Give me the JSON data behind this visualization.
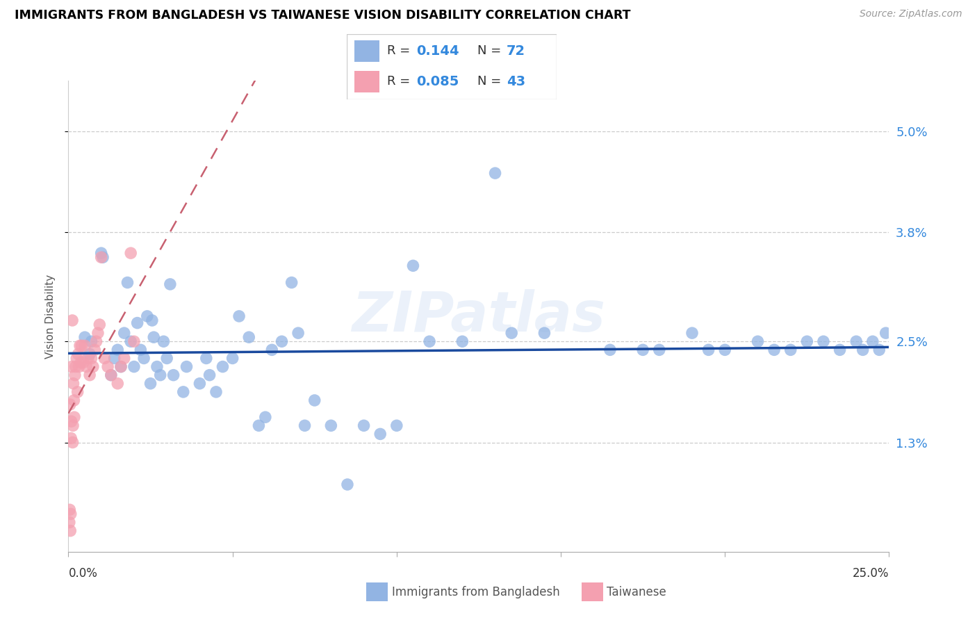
{
  "title": "IMMIGRANTS FROM BANGLADESH VS TAIWANESE VISION DISABILITY CORRELATION CHART",
  "source": "Source: ZipAtlas.com",
  "ylabel": "Vision Disability",
  "xlim": [
    0,
    25
  ],
  "ylim": [
    0,
    5.6
  ],
  "ytick_vals": [
    1.3,
    2.5,
    3.8,
    5.0
  ],
  "ytick_labels": [
    "1.3%",
    "2.5%",
    "3.8%",
    "5.0%"
  ],
  "blue_color": "#92b4e3",
  "pink_color": "#f4a0b0",
  "blue_line_color": "#1a4a9e",
  "pink_line_color": "#c86070",
  "watermark": "ZIPatlas",
  "blue_r": 0.144,
  "blue_n": 72,
  "pink_r": 0.085,
  "pink_n": 43,
  "blue_points_x": [
    0.5,
    0.65,
    0.7,
    1.0,
    1.05,
    1.3,
    1.4,
    1.5,
    1.6,
    1.7,
    1.8,
    1.9,
    2.0,
    2.1,
    2.2,
    2.3,
    2.4,
    2.5,
    2.55,
    2.6,
    2.7,
    2.8,
    2.9,
    3.0,
    3.1,
    3.2,
    3.5,
    3.6,
    4.0,
    4.2,
    4.3,
    4.5,
    4.7,
    5.0,
    5.2,
    5.5,
    5.8,
    6.0,
    6.2,
    6.5,
    6.8,
    7.0,
    7.2,
    7.5,
    8.0,
    8.5,
    9.0,
    9.5,
    10.0,
    10.5,
    11.0,
    12.0,
    13.0,
    13.5,
    14.5,
    16.5,
    17.5,
    18.0,
    19.0,
    19.5,
    20.0,
    21.0,
    21.5,
    22.0,
    22.5,
    23.0,
    23.5,
    24.0,
    24.2,
    24.5,
    24.7,
    24.9
  ],
  "blue_points_y": [
    2.55,
    2.35,
    2.5,
    3.55,
    3.5,
    2.1,
    2.3,
    2.4,
    2.2,
    2.6,
    3.2,
    2.5,
    2.2,
    2.72,
    2.4,
    2.3,
    2.8,
    2.0,
    2.75,
    2.55,
    2.2,
    2.1,
    2.5,
    2.3,
    3.18,
    2.1,
    1.9,
    2.2,
    2.0,
    2.3,
    2.1,
    1.9,
    2.2,
    2.3,
    2.8,
    2.55,
    1.5,
    1.6,
    2.4,
    2.5,
    3.2,
    2.6,
    1.5,
    1.8,
    1.5,
    0.8,
    1.5,
    1.4,
    1.5,
    3.4,
    2.5,
    2.5,
    4.5,
    2.6,
    2.6,
    2.4,
    2.4,
    2.4,
    2.6,
    2.4,
    2.4,
    2.5,
    2.4,
    2.4,
    2.5,
    2.5,
    2.4,
    2.5,
    2.4,
    2.5,
    2.4,
    2.6
  ],
  "pink_points_x": [
    0.03,
    0.04,
    0.05,
    0.06,
    0.07,
    0.08,
    0.09,
    0.1,
    0.12,
    0.13,
    0.14,
    0.15,
    0.17,
    0.18,
    0.2,
    0.22,
    0.25,
    0.28,
    0.3,
    0.32,
    0.35,
    0.38,
    0.4,
    0.45,
    0.5,
    0.55,
    0.6,
    0.65,
    0.7,
    0.75,
    0.8,
    0.85,
    0.9,
    0.95,
    1.0,
    1.1,
    1.2,
    1.3,
    1.5,
    1.6,
    1.7,
    1.9,
    2.0
  ],
  "pink_points_y": [
    0.35,
    0.5,
    1.75,
    0.25,
    0.45,
    1.35,
    1.55,
    2.2,
    2.75,
    1.3,
    1.5,
    2.0,
    1.8,
    1.6,
    2.1,
    2.2,
    2.3,
    1.9,
    2.35,
    2.2,
    2.45,
    2.25,
    2.45,
    2.25,
    2.45,
    2.2,
    2.3,
    2.1,
    2.3,
    2.2,
    2.4,
    2.5,
    2.6,
    2.7,
    3.5,
    2.3,
    2.2,
    2.1,
    2.0,
    2.2,
    2.3,
    3.55,
    2.5
  ]
}
